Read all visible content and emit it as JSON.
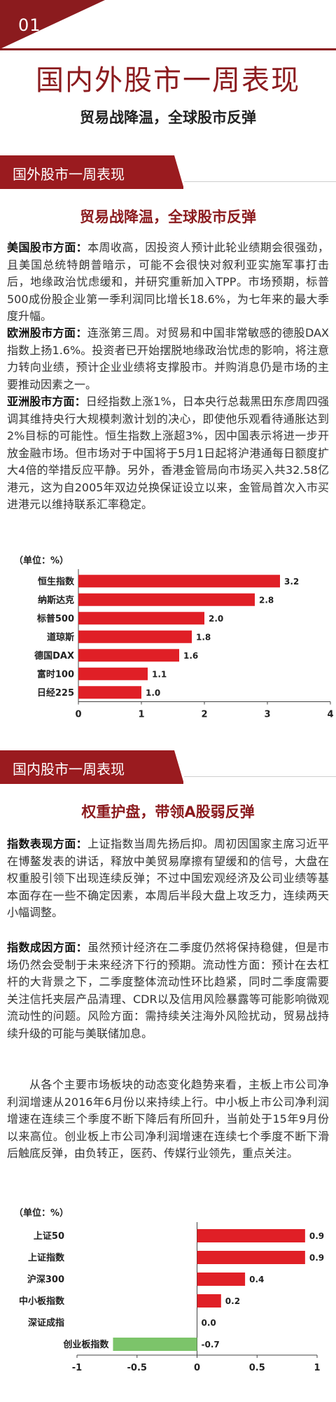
{
  "header": {
    "number": "01",
    "title": "国内外股市一周表现",
    "subtitle": "贸易战降温，全球股市反弹"
  },
  "foreign": {
    "band": "国外股市一周表现",
    "title": "贸易战降温，全球股市反弹",
    "paragraphs": [
      {
        "lead": "美国股市方面：",
        "text": "本周收高，因投资人预计此轮业绩期会很强劲，且美国总统特朗普暗示，可能不会很快对叙利亚实施军事打击后，地缘政治忧虑缓和，并研究重新加入TPP。市场预期，标普500成份股企业第一季利润同比增长18.6%，为七年来的最大季度升幅。"
      },
      {
        "lead": "欧洲股市方面：",
        "text": "连涨第三周。对贸易和中国非常敏感的德股DAX指数上扬1.6%。投资者已开始摆脱地缘政治忧虑的影响，将注意力转向业绩，预计企业业绩将支撑股市。并购消息仍是市场的主要推动因素之一。"
      },
      {
        "lead": "亚洲股市方面：",
        "text": "日经指数上涨1%，日本央行总裁黑田东彦周四强调其维持央行大规模刺激计划的决心，即使他乐观看待通胀达到2%目标的可能性。恒生指数上涨超3%，因中国表示将进一步开放金融市场。但市场对于中国将于5月1日起将沪港通每日额度扩大4倍的举措反应平静。另外，香港金管局向市场买入共32.58亿港元，这为自2005年双边兑换保证设立以来，金管局首次入市买进港元以维持联系汇率稳定。"
      }
    ],
    "unit": "（单位：%）"
  },
  "domestic": {
    "band": "国内股市一周表现",
    "title": "权重护盘，带领A股弱反弹",
    "paragraphs": [
      {
        "lead": "指数表现方面：",
        "text": "上证指数当周先扬后抑。周初因国家主席习近平在博鳌发表的讲话，释放中美贸易摩擦有望缓和的信号，大盘在权重股引领下出现连续反弹；不过中国宏观经济及公司业绩等基本面存在一些不确定因素，本周后半段大盘上攻乏力，连续两天小幅调整。"
      },
      {
        "lead": "指数成因方面：",
        "text": "虽然预计经济在二季度仍然将保持稳健，但是市场仍然会受制于未来经济下行的预期。流动性方面：预计在去杠杆的大背景之下，二季度整体流动性环比趋紧，同时二季度需要关注信托夹层产品清理、CDR以及信用风险暴露等可能影响微观流动性的问题。风险方面：需持续关注海外风险扰动，贸易战持续升级的可能与美联储加息。"
      },
      {
        "lead": "",
        "text": "从各个主要市场板块的动态变化趋势来看，主板上市公司净利润增速从2016年6月份以来持续上行。中小板上市公司净利润增速在连续三个季度不断下降后有所回升，当前处于15年9月份以来高位。创业板上市公司净利润增速在连续七个季度不断下滑后触底反弹，由负转正，医药、传媒行业领先，重点关注。"
      }
    ],
    "unit": "（单位：%）"
  },
  "chart_data": [
    {
      "type": "bar",
      "orientation": "horizontal",
      "unit": "（单位：%）",
      "categories": [
        "恒生指数",
        "纳斯达克",
        "标普500",
        "道琼斯",
        "德国DAX",
        "富时100",
        "日经225"
      ],
      "values": [
        3.2,
        2.8,
        2.0,
        1.8,
        1.6,
        1.1,
        1.0
      ],
      "value_labels": [
        "3.2",
        "2.8",
        "2.0",
        "1.8",
        "1.6",
        "1.1",
        "1.0"
      ],
      "xlim": [
        0,
        4
      ],
      "ticks": [
        "0",
        "1",
        "2",
        "3",
        "4"
      ],
      "colors": {
        "bar": "#e01f26"
      },
      "grid": false
    },
    {
      "type": "bar",
      "orientation": "horizontal",
      "unit": "（单位：%）",
      "categories": [
        "上证50",
        "上证指数",
        "沪深300",
        "中小板指数",
        "深证成指",
        "创业板指数"
      ],
      "values": [
        0.9,
        0.9,
        0.4,
        0.2,
        0.0,
        -0.7
      ],
      "value_labels": [
        "0.9",
        "0.9",
        "0.4",
        "0.2",
        "0.0",
        "-0.7"
      ],
      "xlim": [
        -1,
        1
      ],
      "ticks": [
        "-1",
        "-0.5",
        "0",
        "0.5",
        "1"
      ],
      "colors": {
        "positive": "#e01f26",
        "negative": "#7cc46a"
      },
      "grid": false
    }
  ]
}
